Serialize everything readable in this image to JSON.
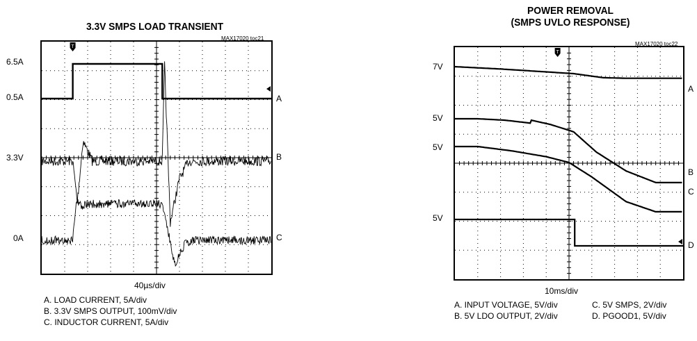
{
  "chart_data": [
    {
      "type": "line",
      "title": "3.3V SMPS LOAD TRANSIENT",
      "code": "MAX17020 toc21",
      "timebase": "40µs/div",
      "divisions": {
        "x": 10,
        "y": 8
      },
      "left_labels": [
        "6.5A",
        "0.5A",
        "3.3V",
        "0A"
      ],
      "traces": [
        {
          "label": "A",
          "name": "LOAD CURRENT",
          "scale": "5A/div",
          "x": [
            0,
            1.35,
            1.35,
            5.25,
            5.25,
            10
          ],
          "y": [
            0.5,
            0.5,
            6.5,
            6.5,
            0.5,
            0.5
          ]
        },
        {
          "label": "B",
          "name": "3.3V SMPS OUTPUT",
          "scale": "100mV/div",
          "x": [
            0,
            1.35,
            1.55,
            1.8,
            2.2,
            5.25,
            5.35,
            5.6,
            6.0,
            6.4,
            10
          ],
          "y": [
            0,
            0,
            -140,
            70,
            0,
            0,
            330,
            -210,
            -60,
            0,
            0
          ]
        },
        {
          "label": "C",
          "name": "INDUCTOR CURRENT",
          "scale": "5A/div",
          "x": [
            0,
            1.35,
            1.5,
            1.75,
            2.1,
            5.25,
            5.5,
            5.8,
            6.2,
            6.6,
            10
          ],
          "y": [
            0,
            0,
            6.8,
            6.0,
            6.3,
            6.3,
            1.5,
            -4.2,
            -0.8,
            0,
            0
          ]
        }
      ],
      "legend": [
        "A. LOAD CURRENT, 5A/div",
        "B. 3.3V SMPS OUTPUT, 100mV/div",
        "C. INDUCTOR CURRENT, 5A/div"
      ]
    },
    {
      "type": "line",
      "title": "POWER REMOVAL",
      "subtitle": "(SMPS UVLO RESPONSE)",
      "code": "MAX17020 toc22",
      "timebase": "10ms/div",
      "divisions": {
        "x": 10,
        "y": 8
      },
      "left_labels": [
        "7V",
        "5V",
        "5V",
        "5V"
      ],
      "traces": [
        {
          "label": "A",
          "name": "INPUT VOLTAGE",
          "scale": "5V/div",
          "x": [
            0,
            2,
            4,
            5.2,
            6.5,
            7.5,
            10
          ],
          "y": [
            7,
            6.6,
            6.1,
            5.8,
            5.1,
            5.0,
            5.0
          ]
        },
        {
          "label": "B",
          "name": "5V LDO OUTPUT",
          "scale": "2V/div",
          "x": [
            0,
            1,
            2.2,
            3.3,
            3.35,
            4.2,
            5.2,
            6.2,
            7.5,
            8.8,
            10
          ],
          "y": [
            5.0,
            5.0,
            4.9,
            4.7,
            4.9,
            4.6,
            4.1,
            2.7,
            1.4,
            0.6,
            0.6
          ]
        },
        {
          "label": "C",
          "name": "5V SMPS",
          "scale": "2V/div",
          "x": [
            0,
            1,
            2.5,
            4,
            5,
            6,
            7.5,
            8.8,
            10
          ],
          "y": [
            5.0,
            5.0,
            4.7,
            4.3,
            3.9,
            2.9,
            1.2,
            0.5,
            0.5
          ]
        },
        {
          "label": "D",
          "name": "PGOOD1",
          "scale": "5V/div",
          "x": [
            0,
            5.25,
            5.25,
            10
          ],
          "y": [
            5,
            5,
            0,
            0
          ]
        }
      ],
      "legend": [
        [
          "A. INPUT VOLTAGE, 5V/div",
          "C. 5V SMPS, 2V/div"
        ],
        [
          "B. 5V LDO OUTPUT, 2V/div",
          "D. PGOOD1, 5V/div"
        ]
      ]
    }
  ]
}
